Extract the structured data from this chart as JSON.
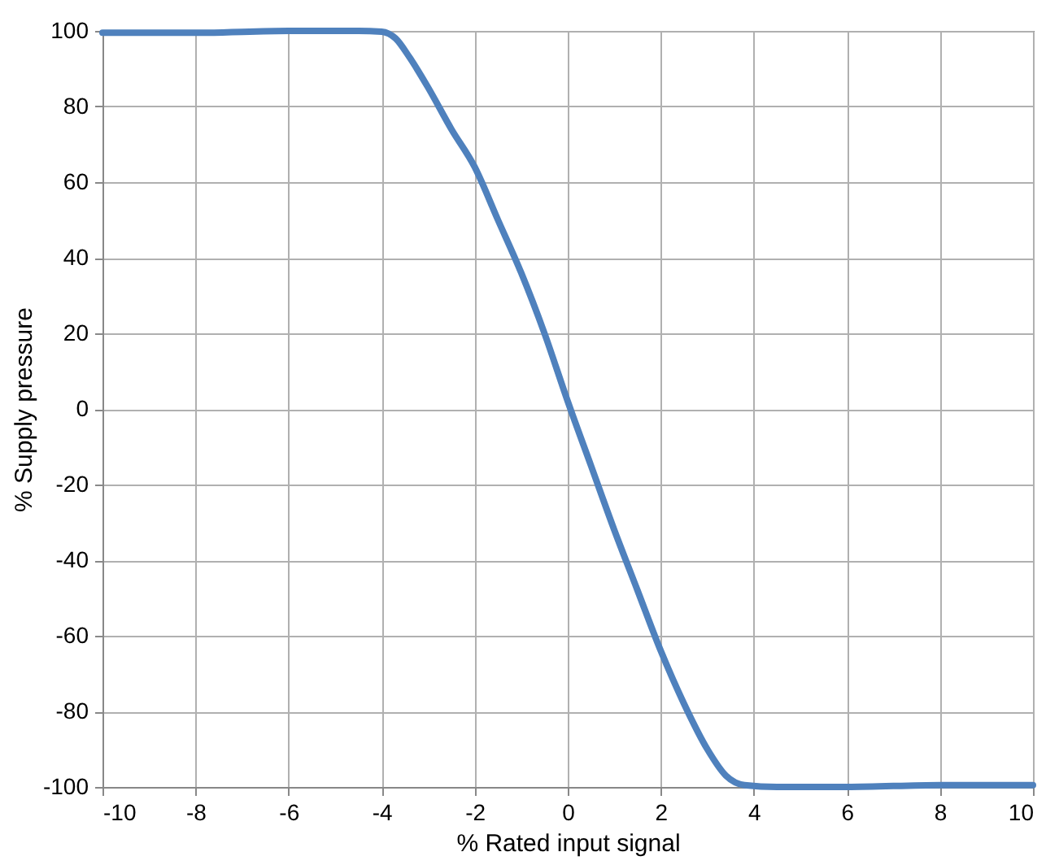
{
  "chart_data": {
    "type": "line",
    "xlabel": "% Rated input signal",
    "ylabel": "% Supply pressure",
    "x": [
      -10,
      -8,
      -6,
      -4.5,
      -4,
      -3.7,
      -3.4,
      -3,
      -2.5,
      -2,
      -1.5,
      -1,
      -0.5,
      0,
      0.5,
      1,
      1.5,
      2,
      2.5,
      3,
      3.4,
      3.8,
      4.5,
      6,
      8,
      10
    ],
    "series": [
      {
        "color": "#4f81bd",
        "values": [
          99.5,
          99.5,
          100,
          100,
          99.8,
          98,
          93,
          85,
          74,
          64,
          50,
          36,
          20,
          2,
          -15,
          -32,
          -48,
          -64,
          -78,
          -90,
          -97,
          -99.5,
          -100,
          -100,
          -99.5,
          -99.5
        ]
      }
    ],
    "xlim": [
      -10,
      10
    ],
    "xticks": [
      -10,
      -8,
      -6,
      -4,
      -2,
      0,
      2,
      4,
      6,
      8,
      10
    ],
    "ylim": [
      -100,
      100
    ],
    "yticks": [
      -100,
      -80,
      -60,
      -40,
      -20,
      0,
      20,
      40,
      60,
      80,
      100
    ],
    "grid": true,
    "marker": "none",
    "line_style": "solid"
  }
}
